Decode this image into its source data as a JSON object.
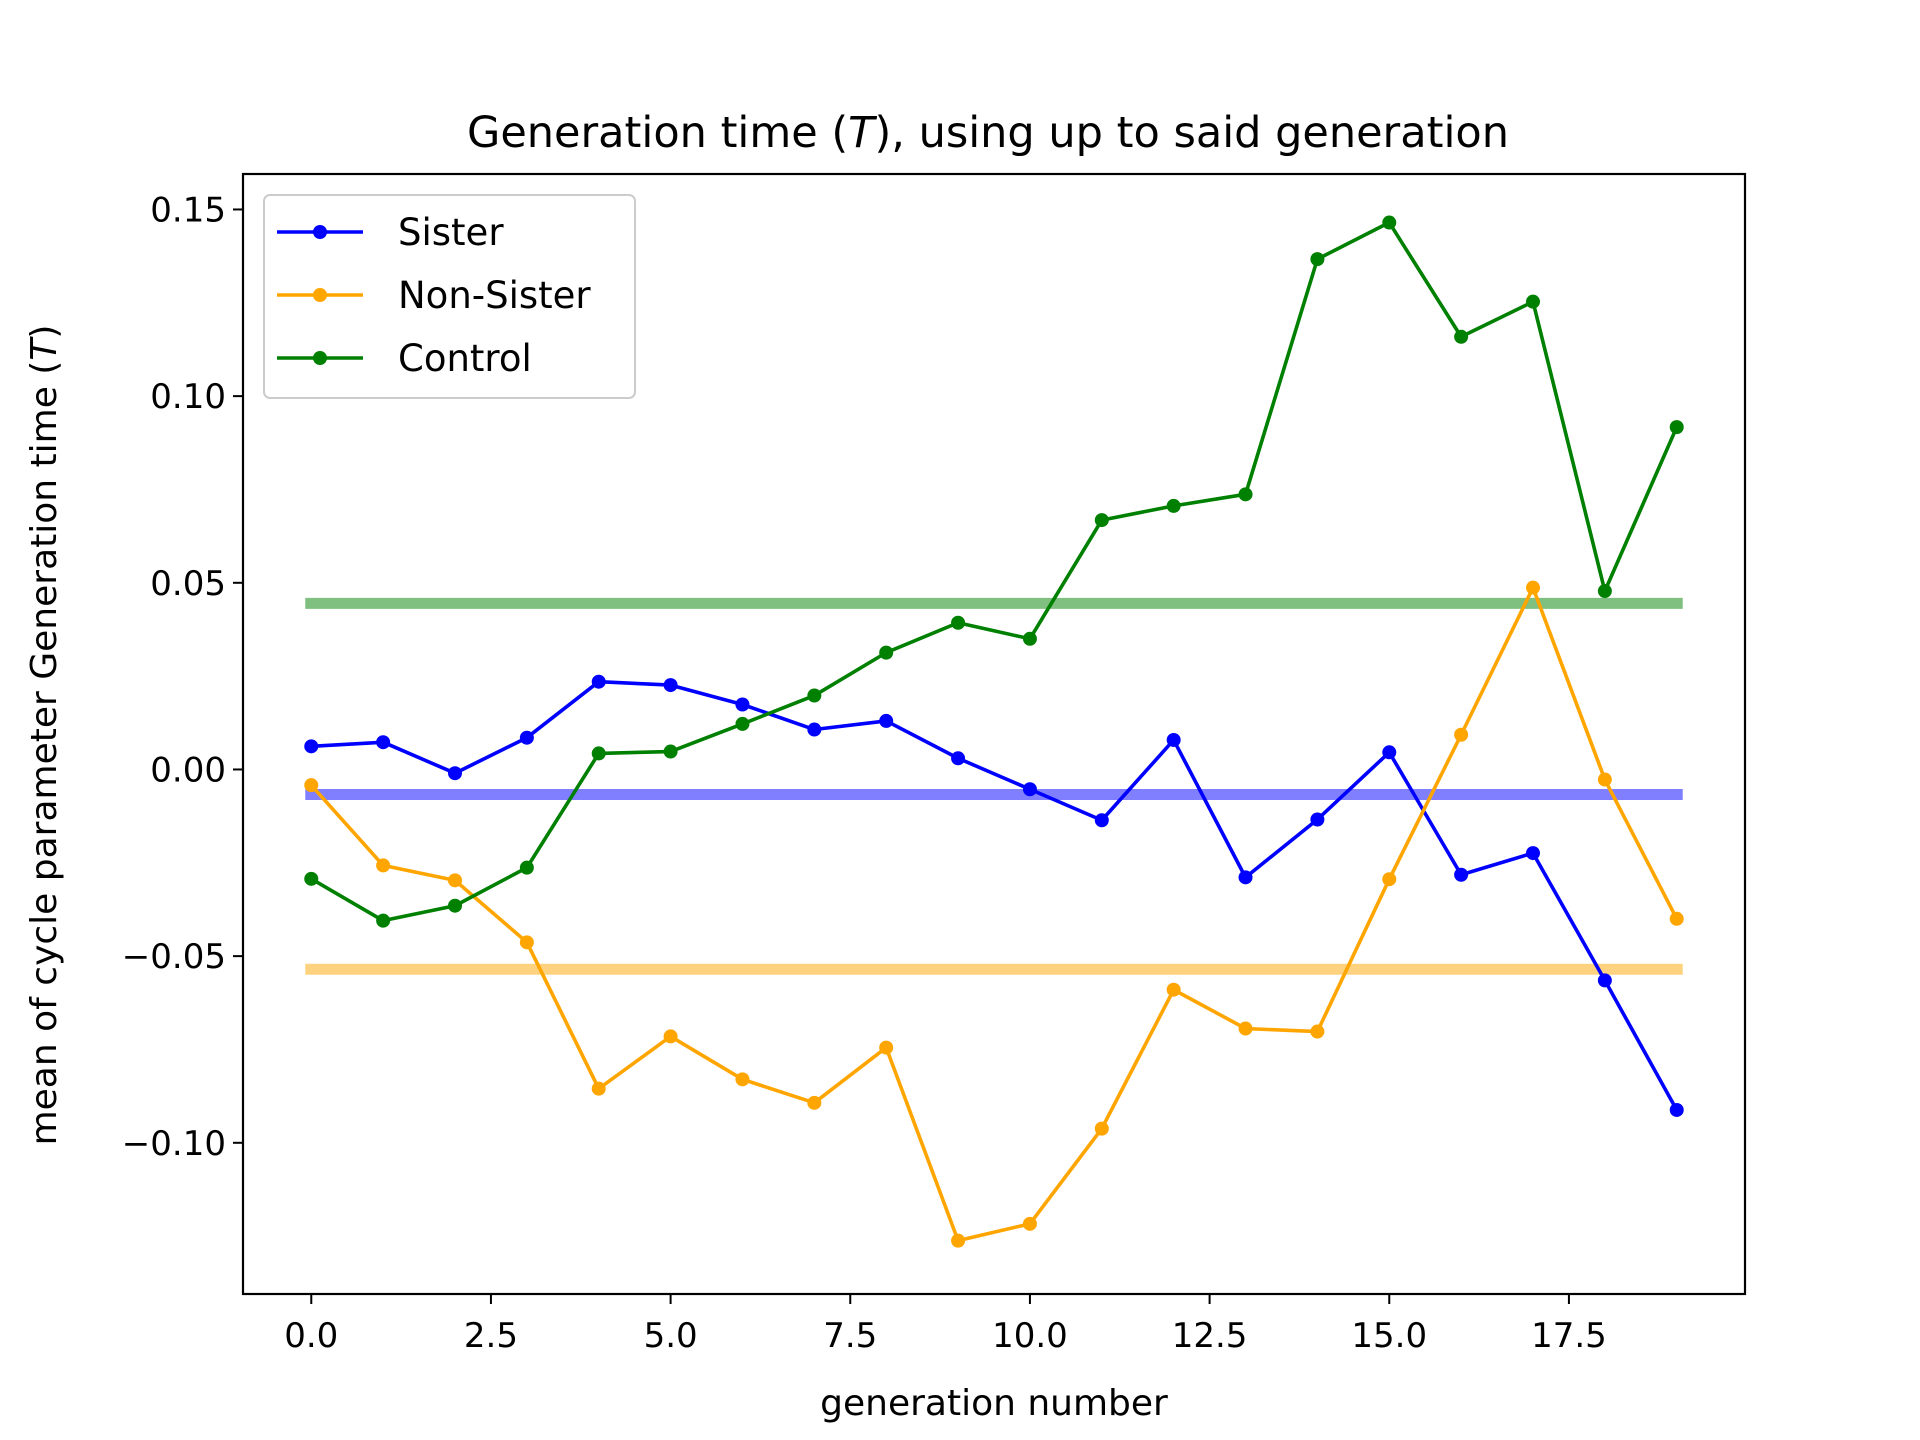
{
  "chart_data": {
    "type": "line",
    "title_pre": "Generation time (",
    "title_var": "T",
    "title_post": "), using up to said generation",
    "xlabel": "generation number",
    "ylabel_pre": "mean of cycle parameter Generation time (",
    "ylabel_var": "T",
    "ylabel_post": ")",
    "xlim": [
      -0.95,
      19.95
    ],
    "ylim": [
      -0.1405,
      0.1595
    ],
    "xticks": [
      0.0,
      2.5,
      5.0,
      7.5,
      10.0,
      12.5,
      15.0,
      17.5
    ],
    "xtick_labels": [
      "0.0",
      "2.5",
      "5.0",
      "7.5",
      "10.0",
      "12.5",
      "15.0",
      "17.5"
    ],
    "yticks": [
      0.15,
      0.1,
      0.05,
      0.0,
      -0.05,
      -0.1
    ],
    "ytick_labels": [
      "0.15",
      "0.10",
      "0.05",
      "0.00",
      "−0.05",
      "−0.10"
    ],
    "grid": false,
    "legend_position": "top-left",
    "x": [
      0,
      1,
      2,
      3,
      4,
      5,
      6,
      7,
      8,
      9,
      10,
      11,
      12,
      13,
      14,
      15,
      16,
      17,
      18,
      19
    ],
    "series": [
      {
        "name": "Sister",
        "color": "#0000ff",
        "values": [
          0.0062,
          0.0073,
          -0.001,
          0.0085,
          0.0235,
          0.0226,
          0.0174,
          0.0107,
          0.013,
          0.003,
          -0.0053,
          -0.0136,
          0.0079,
          -0.0289,
          -0.0134,
          0.0046,
          -0.0282,
          -0.0224,
          -0.0565,
          -0.0912
        ]
      },
      {
        "name": "Non-Sister",
        "color": "#ffa500",
        "values": [
          -0.0042,
          -0.0257,
          -0.0297,
          -0.0463,
          -0.0855,
          -0.0715,
          -0.083,
          -0.0893,
          -0.0745,
          -0.1262,
          -0.1217,
          -0.0962,
          -0.059,
          -0.0694,
          -0.0702,
          -0.0294,
          0.0093,
          0.0487,
          -0.0027,
          -0.04
        ]
      },
      {
        "name": "Control",
        "color": "#008000",
        "values": [
          -0.0293,
          -0.0405,
          -0.0365,
          -0.0263,
          0.0043,
          0.0048,
          0.0122,
          0.0198,
          0.0313,
          0.0393,
          0.035,
          0.0668,
          0.0706,
          0.0737,
          0.1367,
          0.1465,
          0.1159,
          0.1253,
          0.0478,
          0.0917
        ]
      }
    ],
    "hlines": [
      {
        "series": "Control",
        "value": 0.0445,
        "color": "#008000",
        "opacity": 0.5
      },
      {
        "series": "Sister",
        "value": -0.0067,
        "color": "#0000ff",
        "opacity": 0.5
      },
      {
        "series": "Non-Sister",
        "value": -0.0535,
        "color": "#ffa500",
        "opacity": 0.5
      }
    ]
  }
}
